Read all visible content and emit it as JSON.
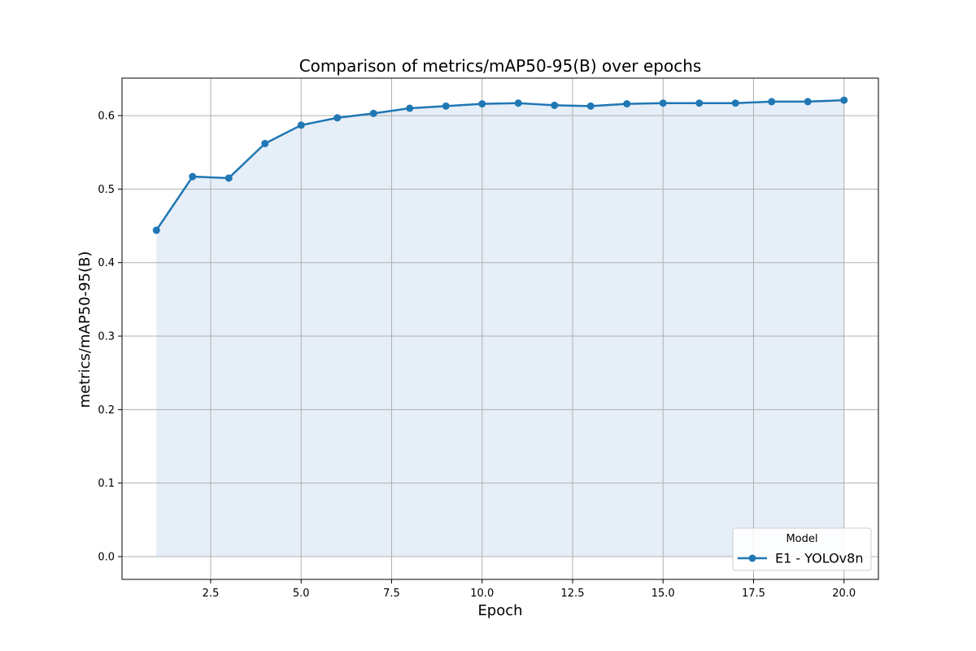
{
  "chart_data": {
    "type": "line",
    "title": "Comparison of metrics/mAP50-95(B) over epochs",
    "xlabel": "Epoch",
    "ylabel": "metrics/mAP50-95(B)",
    "xlim": [
      0.05,
      20.95
    ],
    "ylim": [
      -0.031,
      0.651
    ],
    "xticks": [
      2.5,
      5.0,
      7.5,
      10.0,
      12.5,
      15.0,
      17.5,
      20.0
    ],
    "xtick_labels": [
      "2.5",
      "5.0",
      "7.5",
      "10.0",
      "12.5",
      "15.0",
      "17.5",
      "20.0"
    ],
    "yticks": [
      0.0,
      0.1,
      0.2,
      0.3,
      0.4,
      0.5,
      0.6
    ],
    "ytick_labels": [
      "0.0",
      "0.1",
      "0.2",
      "0.3",
      "0.4",
      "0.5",
      "0.6"
    ],
    "grid": true,
    "legend": {
      "title": "Model",
      "placement": "bottom-right"
    },
    "series": [
      {
        "name": "E1 - YOLOv8n",
        "color": "#1f77b4",
        "fill_color": "#e6eef7",
        "x": [
          1,
          2,
          3,
          4,
          5,
          6,
          7,
          8,
          9,
          10,
          11,
          12,
          13,
          14,
          15,
          16,
          17,
          18,
          19,
          20
        ],
        "y": [
          0.444,
          0.517,
          0.515,
          0.562,
          0.587,
          0.597,
          0.603,
          0.61,
          0.613,
          0.616,
          0.617,
          0.614,
          0.613,
          0.616,
          0.617,
          0.617,
          0.617,
          0.619,
          0.619,
          0.621
        ]
      }
    ]
  }
}
